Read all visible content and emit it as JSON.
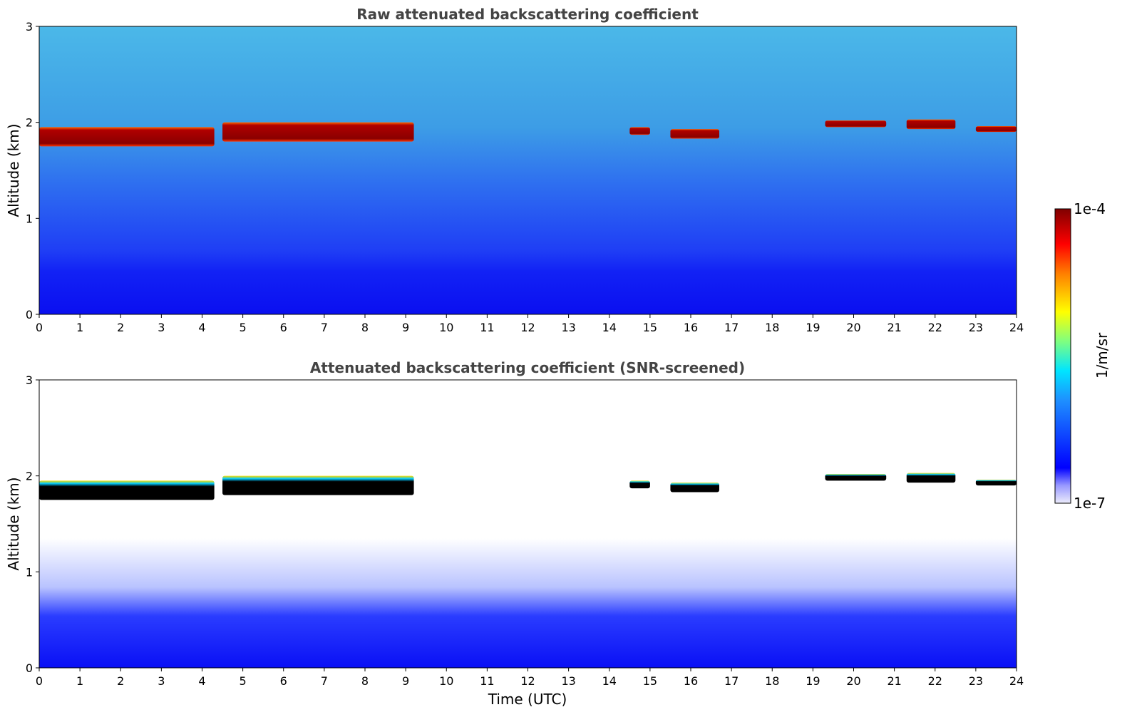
{
  "chart_data": [
    {
      "type": "heatmap",
      "title": "Raw attenuated backscattering coefficient",
      "xlabel": "",
      "ylabel": "Altitude (km)",
      "xlim": [
        0,
        24
      ],
      "ylim": [
        0,
        3
      ],
      "x_ticks": [
        "0",
        "1",
        "2",
        "3",
        "4",
        "5",
        "6",
        "7",
        "8",
        "9",
        "10",
        "11",
        "12",
        "13",
        "14",
        "15",
        "16",
        "17",
        "18",
        "19",
        "20",
        "21",
        "22",
        "23",
        "24"
      ],
      "y_ticks": [
        "0",
        "1",
        "2",
        "3"
      ],
      "cloud_layers": [
        {
          "start": 0.0,
          "end": 4.3,
          "base_km": 1.75,
          "top_km": 1.95
        },
        {
          "start": 4.5,
          "end": 9.2,
          "base_km": 1.8,
          "top_km": 2.0
        },
        {
          "start": 14.5,
          "end": 15.0,
          "base_km": 1.87,
          "top_km": 1.95
        },
        {
          "start": 15.5,
          "end": 16.7,
          "base_km": 1.83,
          "top_km": 1.93
        },
        {
          "start": 19.3,
          "end": 20.8,
          "base_km": 1.95,
          "top_km": 2.02
        },
        {
          "start": 21.3,
          "end": 22.5,
          "base_km": 1.93,
          "top_km": 2.03
        },
        {
          "start": 23.0,
          "end": 24.0,
          "base_km": 1.9,
          "top_km": 1.96
        }
      ]
    },
    {
      "type": "heatmap",
      "title": "Attenuated backscattering coefficient (SNR-screened)",
      "xlabel": "Time (UTC)",
      "ylabel": "Altitude (km)",
      "xlim": [
        0,
        24
      ],
      "ylim": [
        0,
        3
      ],
      "x_ticks": [
        "0",
        "1",
        "2",
        "3",
        "4",
        "5",
        "6",
        "7",
        "8",
        "9",
        "10",
        "11",
        "12",
        "13",
        "14",
        "15",
        "16",
        "17",
        "18",
        "19",
        "20",
        "21",
        "22",
        "23",
        "24"
      ],
      "y_ticks": [
        "0",
        "1",
        "2",
        "3"
      ]
    }
  ],
  "colorbar": {
    "label": "1/m/sr",
    "max_label": "1e-4",
    "min_label": "1e-7",
    "colors": [
      "#e8e8ff",
      "#0000ff",
      "#1e90ff",
      "#00ffff",
      "#7fff7f",
      "#ffff00",
      "#ff7f00",
      "#ff0000",
      "#800000"
    ]
  }
}
